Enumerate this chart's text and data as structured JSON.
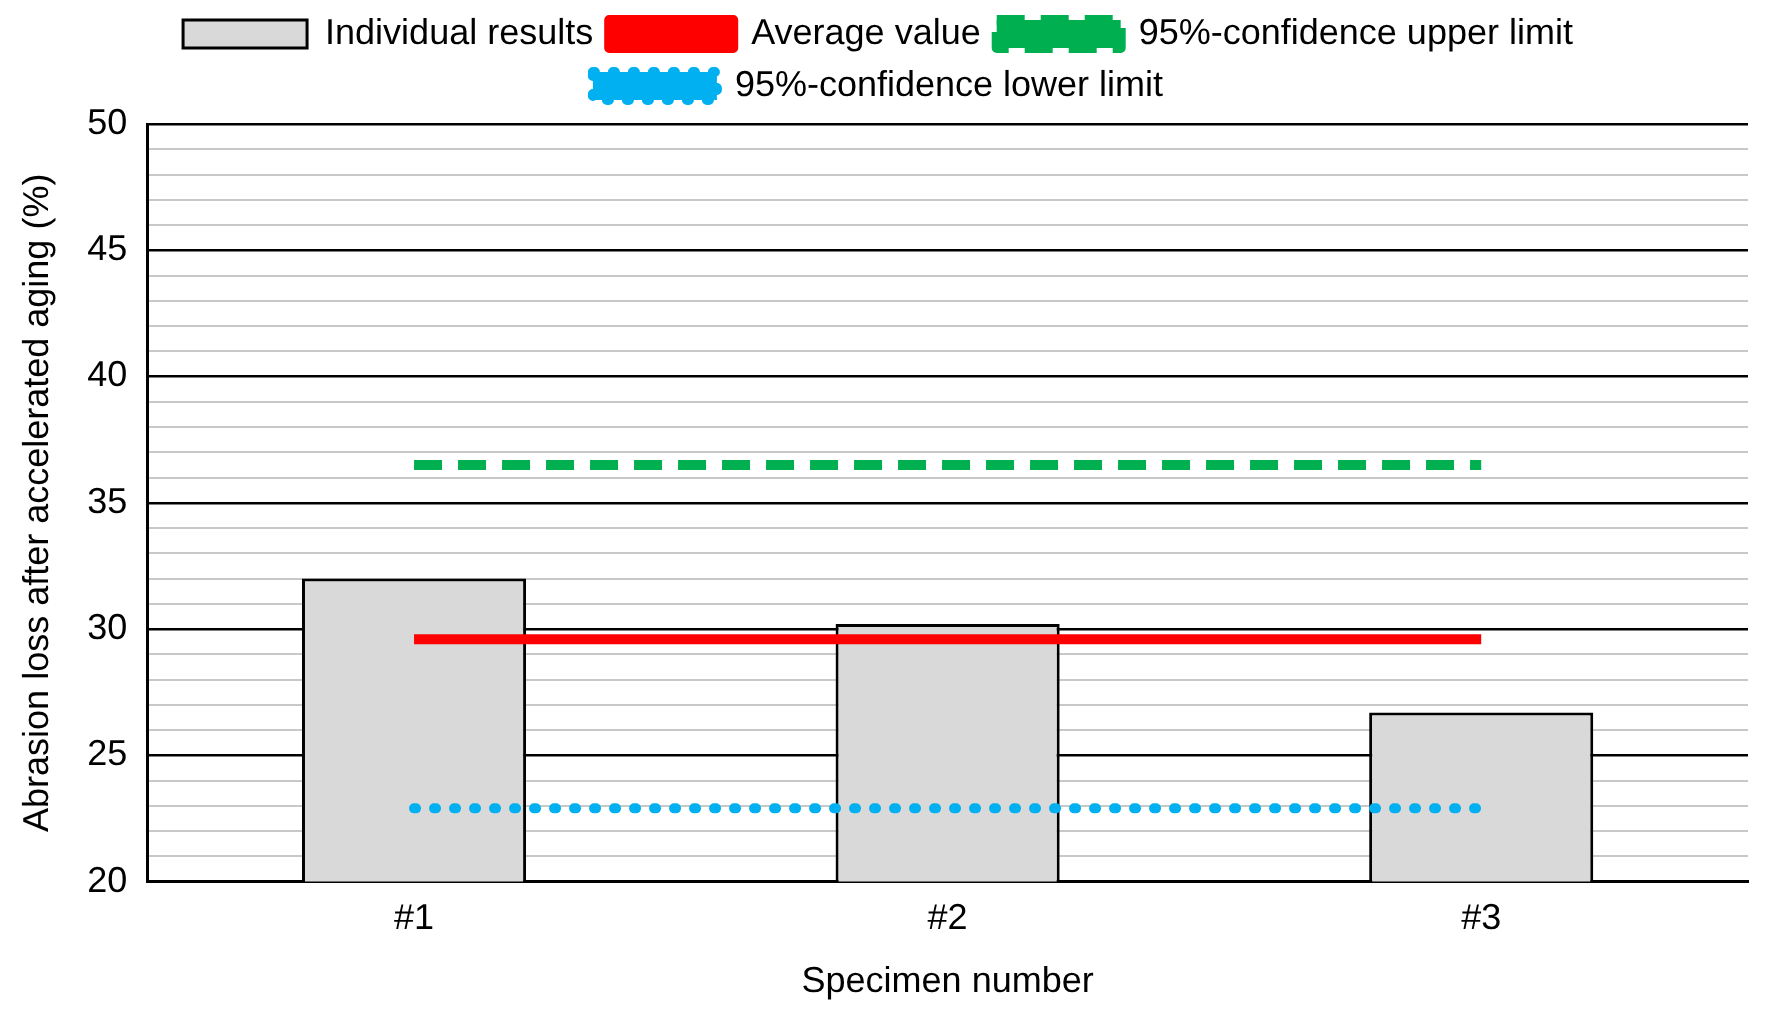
{
  "chart_data": {
    "type": "bar",
    "xlabel": "Specimen number",
    "ylabel": "Abrasion loss after accelerated aging (%)",
    "categories": [
      "#1",
      "#2",
      "#3"
    ],
    "series": [
      {
        "name": "Individual results",
        "color": "#d9d9d9",
        "values": [
          32.0,
          30.2,
          26.7
        ]
      },
      {
        "name": "Average value",
        "type": "line",
        "color": "#ff0000",
        "line_style": "solid",
        "values": [
          29.6,
          29.6,
          29.6
        ]
      },
      {
        "name": "95%-confidence upper limit",
        "type": "line",
        "color": "#00b050",
        "line_style": "dashed",
        "values": [
          36.5,
          36.5,
          36.5
        ]
      },
      {
        "name": "95%-confidence lower limit",
        "type": "line",
        "color": "#00b0f0",
        "line_style": "dotted",
        "values": [
          22.9,
          22.9,
          22.9
        ]
      }
    ],
    "ylim": [
      20,
      50
    ],
    "yticks": [
      20,
      {
        "value": 21,
        "label": null
      },
      {
        "value": 22,
        "label": null
      },
      {
        "value": 23,
        "label": null
      },
      {
        "value": 24,
        "label": null
      },
      25,
      {
        "value": 26,
        "label": null
      },
      {
        "value": 27,
        "label": null
      },
      {
        "value": 28,
        "label": null
      },
      {
        "value": 29,
        "label": null
      },
      30,
      {
        "value": 31,
        "label": null
      },
      {
        "value": 32,
        "label": null
      },
      {
        "value": 33,
        "label": null
      },
      {
        "value": 34,
        "label": null
      },
      35,
      {
        "value": 36,
        "label": null
      },
      {
        "value": 37,
        "label": null
      },
      {
        "value": 38,
        "label": null
      },
      {
        "value": 39,
        "label": null
      },
      40,
      {
        "value": 41,
        "label": null
      },
      {
        "value": 42,
        "label": null
      },
      {
        "value": 43,
        "label": null
      },
      {
        "value": 44,
        "label": null
      },
      45,
      {
        "value": 46,
        "label": null
      },
      {
        "value": 47,
        "label": null
      },
      {
        "value": 48,
        "label": null
      },
      {
        "value": 49,
        "label": null
      },
      50
    ],
    "grid": "y",
    "legend": "top",
    "marker": "none"
  }
}
